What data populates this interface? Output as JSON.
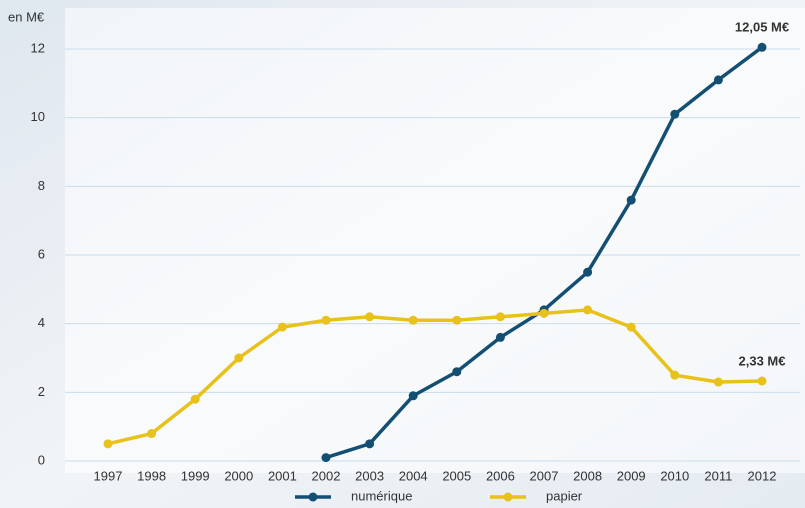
{
  "chart_data": {
    "type": "line",
    "y_label": "en M€",
    "categories": [
      "1997",
      "1998",
      "1999",
      "2000",
      "2001",
      "2002",
      "2003",
      "2004",
      "2005",
      "2006",
      "2007",
      "2008",
      "2009",
      "2010",
      "2011",
      "2012"
    ],
    "series": [
      {
        "name": "numérique",
        "color": "#134f72",
        "values": [
          null,
          null,
          null,
          null,
          null,
          0.1,
          0.5,
          1.9,
          2.6,
          3.6,
          4.4,
          5.5,
          7.6,
          10.1,
          11.1,
          12.05
        ]
      },
      {
        "name": "papier",
        "color": "#e8c11a",
        "values": [
          0.5,
          0.8,
          1.8,
          3.0,
          3.9,
          4.1,
          4.2,
          4.1,
          4.1,
          4.2,
          4.3,
          4.4,
          3.9,
          2.5,
          2.3,
          2.33
        ]
      }
    ],
    "annotations": [
      "12,05 M€",
      "2,33 M€"
    ],
    "ylim": [
      0,
      12
    ],
    "yticks": [
      0,
      2,
      4,
      6,
      8,
      10,
      12
    ],
    "grid": true
  }
}
